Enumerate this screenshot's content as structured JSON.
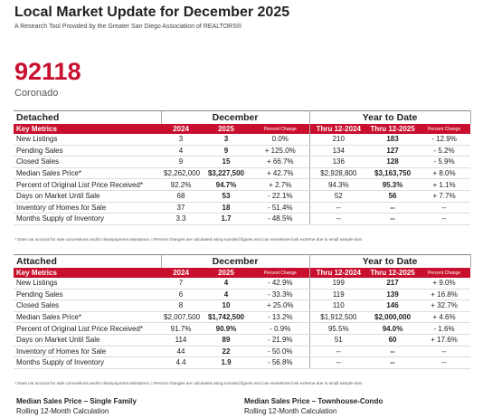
{
  "header": {
    "title": "Local Market Update for December 2025",
    "subtitle": "A Research Tool Provided by the Greater San Diego Association of REALTORS®"
  },
  "location": {
    "zip": "92118",
    "name": "Coronado"
  },
  "sections": [
    {
      "name": "Detached",
      "periods": [
        "December",
        "Year to Date"
      ],
      "columns": [
        "Key Metrics",
        "2024",
        "2025",
        "Percent Change",
        "Thru 12-2024",
        "Thru 12-2025",
        "Percent Change"
      ],
      "rows": [
        [
          "New Listings",
          "3",
          "3",
          "0.0%",
          "210",
          "183",
          "- 12.9%"
        ],
        [
          "Pending Sales",
          "4",
          "9",
          "+ 125.0%",
          "134",
          "127",
          "- 5.2%"
        ],
        [
          "Closed Sales",
          "9",
          "15",
          "+ 66.7%",
          "136",
          "128",
          "- 5.9%"
        ],
        [
          "Median Sales Price*",
          "$2,262,000",
          "$3,227,500",
          "+ 42.7%",
          "$2,928,800",
          "$3,163,750",
          "+ 8.0%"
        ],
        [
          "Percent of Original List Price Received*",
          "92.2%",
          "94.7%",
          "+ 2.7%",
          "94.3%",
          "95.3%",
          "+ 1.1%"
        ],
        [
          "Days on Market Until Sale",
          "68",
          "53",
          "- 22.1%",
          "52",
          "56",
          "+ 7.7%"
        ],
        [
          "Inventory of Homes for Sale",
          "37",
          "18",
          "- 51.4%",
          "--",
          "--",
          "--"
        ],
        [
          "Months Supply of Inventory",
          "3.3",
          "1.7",
          "- 48.5%",
          "--",
          "--",
          "--"
        ]
      ],
      "footnote": "* Does not account for sale concessions and/or downpayment assistance. | Percent changes are calculated using rounded figures and can sometimes look extreme due to small sample size."
    },
    {
      "name": "Attached",
      "periods": [
        "December",
        "Year to Date"
      ],
      "columns": [
        "Key Metrics",
        "2024",
        "2025",
        "Percent Change",
        "Thru 12-2024",
        "Thru 12-2025",
        "Percent Change"
      ],
      "rows": [
        [
          "New Listings",
          "7",
          "4",
          "- 42.9%",
          "199",
          "217",
          "+ 9.0%"
        ],
        [
          "Pending Sales",
          "6",
          "4",
          "- 33.3%",
          "119",
          "139",
          "+ 16.8%"
        ],
        [
          "Closed Sales",
          "8",
          "10",
          "+ 25.0%",
          "110",
          "146",
          "+ 32.7%"
        ],
        [
          "Median Sales Price*",
          "$2,007,500",
          "$1,742,500",
          "- 13.2%",
          "$1,912,500",
          "$2,000,000",
          "+ 4.6%"
        ],
        [
          "Percent of Original List Price Received*",
          "91.7%",
          "90.9%",
          "- 0.9%",
          "95.5%",
          "94.0%",
          "- 1.6%"
        ],
        [
          "Days on Market Until Sale",
          "114",
          "89",
          "- 21.9%",
          "51",
          "60",
          "+ 17.6%"
        ],
        [
          "Inventory of Homes for Sale",
          "44",
          "22",
          "- 50.0%",
          "--",
          "--",
          "--"
        ],
        [
          "Months Supply of Inventory",
          "4.4",
          "1.9",
          "- 56.8%",
          "--",
          "--",
          "--"
        ]
      ],
      "footnote": "* Does not account for sale concessions and/or downpayment assistance. | Percent changes are calculated using rounded figures and can sometimes look extreme due to small sample size."
    }
  ],
  "charts": [
    {
      "title": "Median Sales Price – Single Family",
      "subtitle": "Rolling 12-Month Calculation"
    },
    {
      "title": "Median Sales Price – Townhouse-Condo",
      "subtitle": "Rolling 12-Month Calculation"
    }
  ]
}
